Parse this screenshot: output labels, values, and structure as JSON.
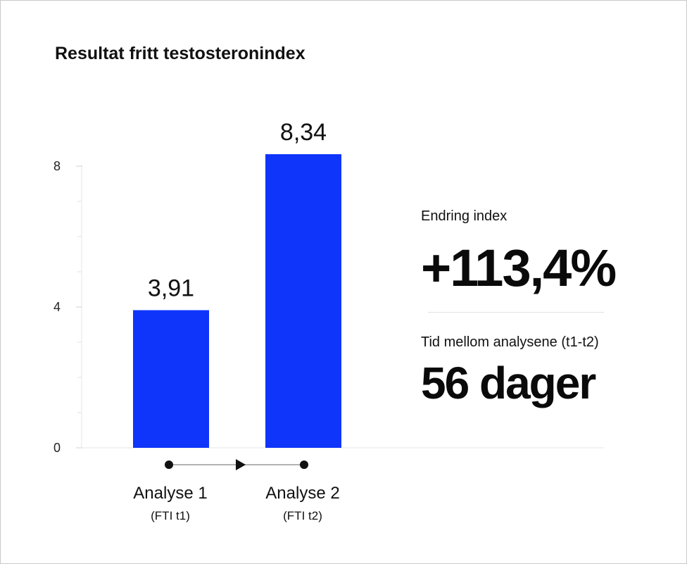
{
  "chart_data": {
    "type": "bar",
    "title": "Resultat fritt testosteronindex",
    "categories": [
      "Analyse 1",
      "Analyse 2"
    ],
    "category_subtitles": [
      "(FTI t1)",
      "(FTI t2)"
    ],
    "values": [
      3.91,
      8.34
    ],
    "data_labels": [
      "3,91",
      "8,34"
    ],
    "ylim": [
      0,
      8
    ],
    "yticks": [
      0,
      4,
      8
    ],
    "ytick_labels": [
      "0",
      "4",
      "8"
    ],
    "minor_tick_step": 1,
    "grid": false,
    "bar_color": "#0f35fa",
    "xlabel": "",
    "ylabel": ""
  },
  "stats": {
    "change_label": "Endring index",
    "change_value": "+113,4%",
    "time_label": "Tid mellom analysene (t1-t2)",
    "time_value": "56 dager"
  },
  "timeline": {
    "arrow_color": "#111111",
    "line_color": "#9a9a9a"
  }
}
